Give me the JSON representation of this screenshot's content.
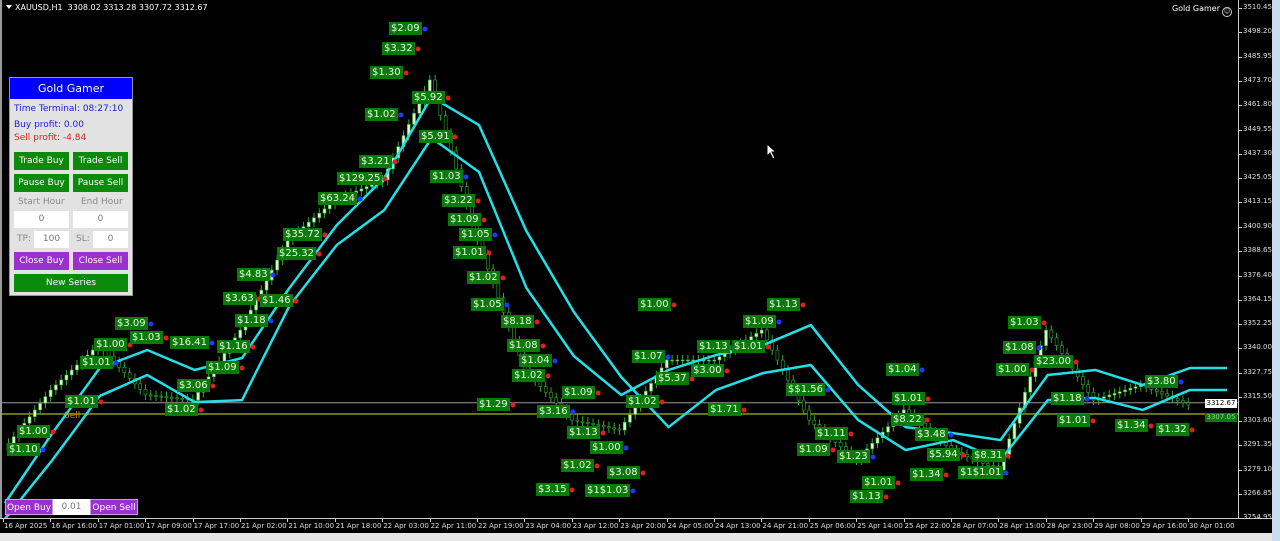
{
  "header": {
    "symbol": "XAUUSD,H1",
    "ohlc": "3308.02 3313.28 3307.72 3312.67"
  },
  "brand": {
    "label": "Gold Gamer",
    "icon": "smiley-icon"
  },
  "panel": {
    "title": "Gold Gamer",
    "time_terminal": "Time Terminal: 08:27:10",
    "buy_profit": "Buy profit: 0.00",
    "sell_profit": "Sell profit: -4.84",
    "trade_buy": "Trade Buy",
    "trade_sell": "Trade Sell",
    "pause_buy": "Pause Buy",
    "pause_sell": "Pause Sell",
    "start_hour_label": "Start Hour",
    "end_hour_label": "End Hour",
    "start_hour": "0",
    "end_hour": "0",
    "tp_label": "TP:",
    "tp": "100",
    "sl_label": "SL:",
    "sl": "0",
    "close_buy": "Close Buy",
    "close_sell": "Close Sell",
    "new_series": "New Series",
    "colors": {
      "title_bg": "#0000ff",
      "green_button": "#0b8a0b",
      "purple_button": "#9b30d0",
      "buy_text": "#1a1ae0",
      "sell_text": "#e02020"
    }
  },
  "order_bar": {
    "open_buy": "Open Buy",
    "lot": "0.01",
    "open_sell": "Open Sell"
  },
  "sell_marker": "Sell",
  "chart_data": {
    "type": "candlestick",
    "symbol": "XAUUSD",
    "timeframe": "H1",
    "y_ticks": [
      "3510.45",
      "3498.20",
      "3485.95",
      "3473.70",
      "3461.80",
      "3449.55",
      "3437.30",
      "3425.05",
      "3413.15",
      "3400.90",
      "3388.65",
      "3376.40",
      "3364.15",
      "3352.25",
      "3340.00",
      "3327.75",
      "3315.50",
      "3303.60",
      "3291.35",
      "3279.10",
      "3266.85",
      "3254.95"
    ],
    "ylim": [
      3254.95,
      3510.45
    ],
    "x_ticks": [
      "16 Apr 2025",
      "16 Apr 16:00",
      "17 Apr 01:00",
      "17 Apr 09:00",
      "17 Apr 17:00",
      "21 Apr 02:00",
      "21 Apr 10:00",
      "21 Apr 18:00",
      "22 Apr 03:00",
      "22 Apr 11:00",
      "22 Apr 19:00",
      "23 Apr 04:00",
      "23 Apr 12:00",
      "23 Apr 20:00",
      "24 Apr 05:00",
      "24 Apr 13:00",
      "24 Apr 21:00",
      "25 Apr 06:00",
      "25 Apr 14:00",
      "25 Apr 22:00",
      "28 Apr 07:00",
      "28 Apr 15:00",
      "28 Apr 23:00",
      "29 Apr 08:00",
      "29 Apr 16:00",
      "30 Apr 01:00"
    ],
    "close_at_ticks": [
      3289.0,
      3319.1,
      3341.6,
      3316.6,
      3314.0,
      3349.1,
      3394.2,
      3414.3,
      3424.3,
      3474.4,
      3394.2,
      3329.1,
      3304.0,
      3299.0,
      3334.1,
      3334.1,
      3349.1,
      3304.0,
      3284.0,
      3309.1,
      3289.0,
      3279.0,
      3349.1,
      3314.0,
      3321.6,
      3311.6
    ],
    "ma_lines": [
      {
        "color": "#22e0e8",
        "values_at_ticks": [
          3262.4,
          3297.5,
          3330.1,
          3339.1,
          3329.1,
          3335.1,
          3370.2,
          3401.7,
          3425.3,
          3465.9,
          3451.8,
          3398.7,
          3358.2,
          3325.6,
          3300.5,
          3319.1,
          3327.6,
          3331.6,
          3304.0,
          3289.0,
          3294.0,
          3284.0,
          3314.0,
          3315.1,
          3309.1,
          3319.1
        ]
      },
      {
        "color": "#22e0e8",
        "values_at_ticks": [
          3254.5,
          3284.0,
          3316.1,
          3326.6,
          3313.0,
          3314.0,
          3361.2,
          3391.7,
          3409.2,
          3445.3,
          3428.3,
          3370.2,
          3336.1,
          3316.6,
          3329.1,
          3336.6,
          3341.6,
          3351.6,
          3321.6,
          3300.5,
          3297.5,
          3294.0,
          3326.6,
          3329.1,
          3321.6,
          3330.1
        ]
      }
    ],
    "bid_price": "3312.67",
    "level_price": "3307.05",
    "colors": {
      "bid_line": "#9a9a9a",
      "level_line": "#8a9a10",
      "bull_candle": "#d8f7c8",
      "wick": "#2faa2f"
    },
    "profit_labels": [
      "$2.09",
      "$3.32",
      "$1.30",
      "$1.02",
      "$5.92",
      "$5.91",
      "$1.03",
      "$3.22",
      "$1.09",
      "$1.05",
      "$1.01",
      "$1.02",
      "$1.05",
      "$3.21",
      "$129.25",
      "$63.24",
      "$35.72",
      "$25.32",
      "$4.83",
      "$3.63",
      "$1.46",
      "$1.18",
      "$1.16",
      "$1.09",
      "$16.41",
      "$3.06",
      "$1.02",
      "$3.09",
      "$1.03",
      "$1.00",
      "$1.01",
      "$1.01",
      "$1.00",
      "$1.10",
      "$8.18",
      "$1.08",
      "$1.04",
      "$1.02",
      "$1.29",
      "$3.16",
      "$1.09",
      "$1.13",
      "$1.00",
      "$3.08",
      "$1.02",
      "$1$1.03",
      "$3.15",
      "$1.00",
      "$1.07",
      "$5.37",
      "$1.02",
      "$1.13",
      "$3.00",
      "$1.01",
      "$1.09",
      "$1.13",
      "$1.71",
      "$$1.56",
      "$1.11",
      "$1.09",
      "$1.23",
      "$1.01",
      "$1.13",
      "$1.04",
      "$1.01",
      "$8.22",
      "$3.48",
      "$5.94",
      "$1.34",
      "$1$1.01",
      "$8.31",
      "$1.03",
      "$1.08",
      "$23.00",
      "$1.00",
      "$1.18",
      "$1.01",
      "$1.34",
      "$3.80",
      "$1.32"
    ]
  }
}
